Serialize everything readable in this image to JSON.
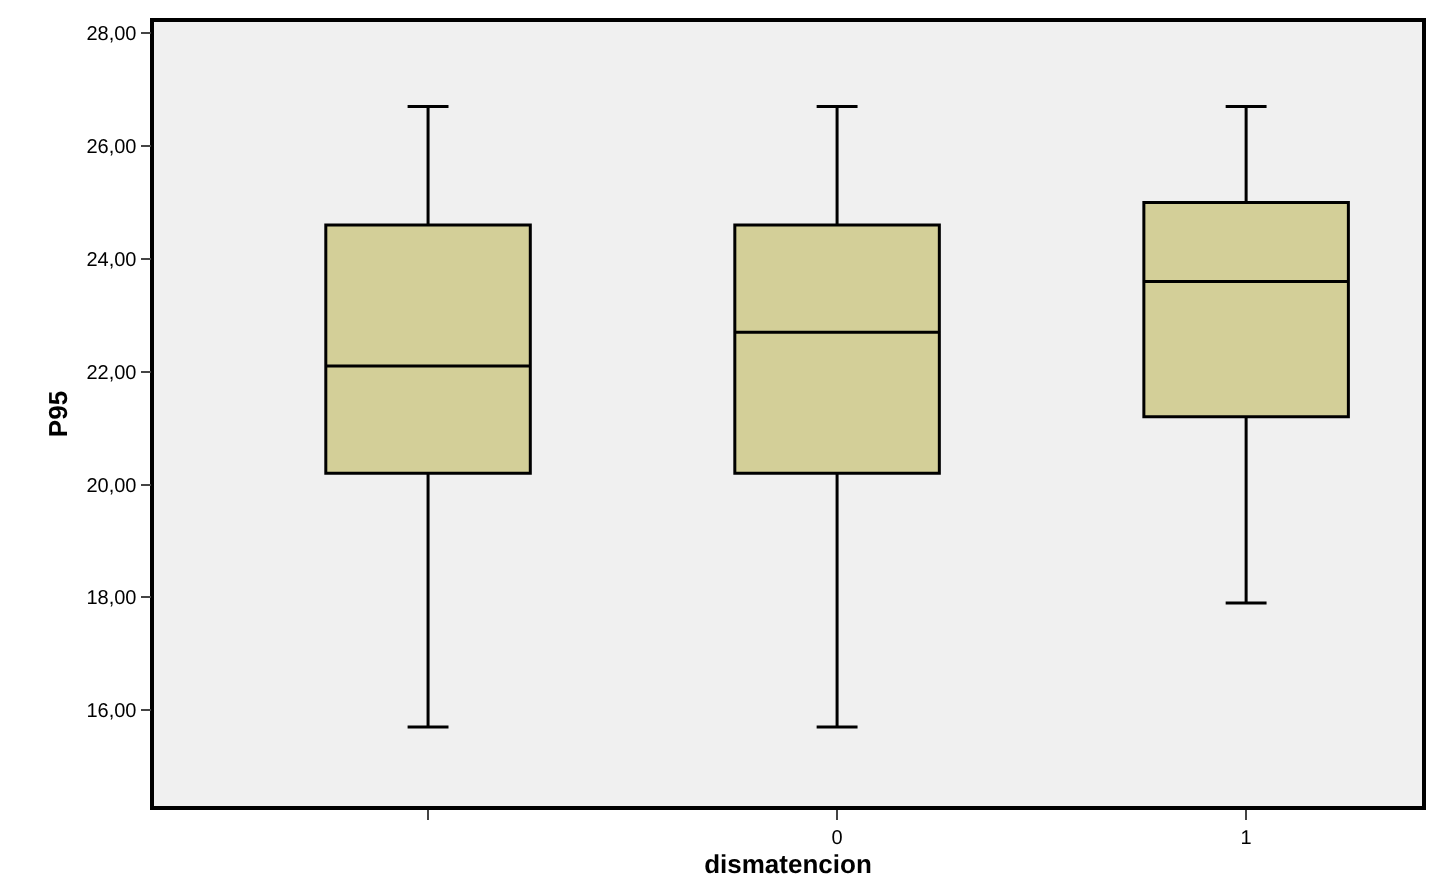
{
  "chart_data": {
    "type": "box",
    "xlabel": "dismatencion",
    "ylabel": "P95",
    "categories": [
      null,
      "0",
      "1"
    ],
    "boxes": [
      {
        "low": 15.7,
        "q1": 20.2,
        "median": 22.1,
        "q3": 24.6,
        "high": 26.7
      },
      {
        "low": 15.7,
        "q1": 20.2,
        "median": 22.7,
        "q3": 24.6,
        "high": 26.7
      },
      {
        "low": 17.9,
        "q1": 21.2,
        "median": 23.6,
        "q3": 25.0,
        "high": 26.7
      }
    ],
    "color": "#d3cf98",
    "ylim": [
      14.3,
      28.2
    ],
    "yticks": [
      {
        "value": 16,
        "label": "16,00"
      },
      {
        "value": 18,
        "label": "18,00"
      },
      {
        "value": 20,
        "label": "20,00"
      },
      {
        "value": 22,
        "label": "22,00"
      },
      {
        "value": 24,
        "label": "24,00"
      },
      {
        "value": 26,
        "label": "26,00"
      },
      {
        "value": 28,
        "label": "28,00"
      }
    ],
    "grid": false,
    "legend": false
  }
}
